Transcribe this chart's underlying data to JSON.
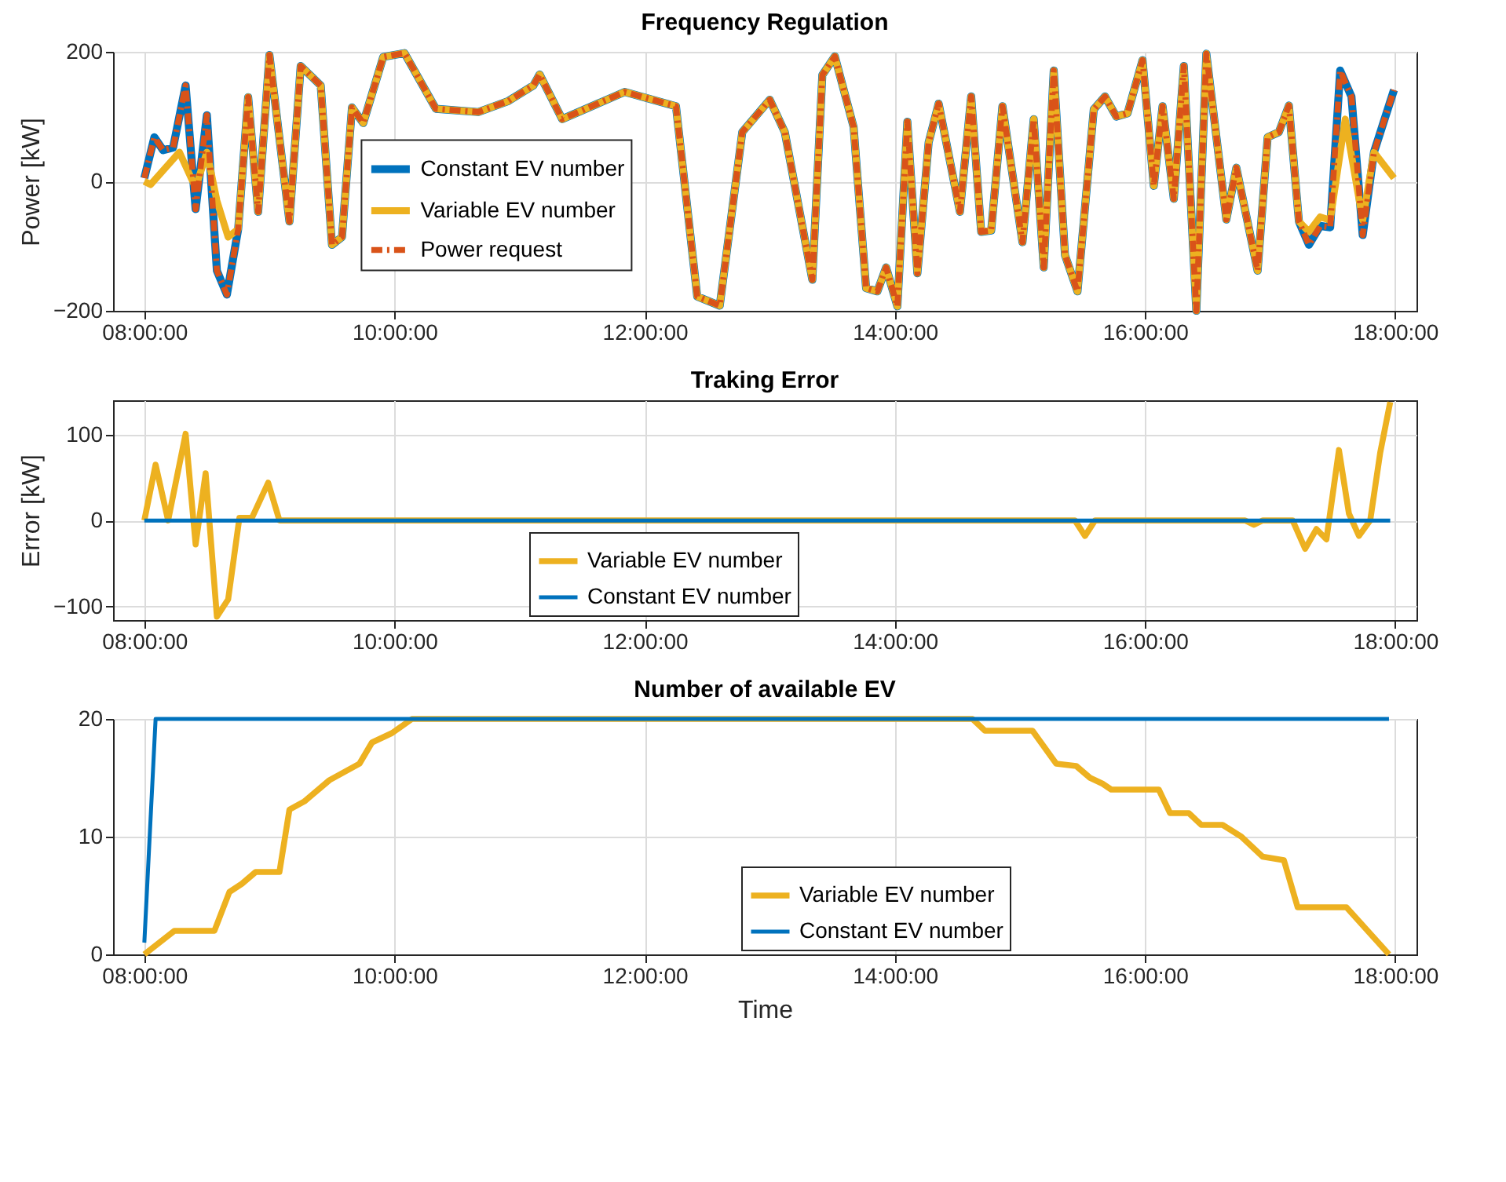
{
  "chart_data": [
    {
      "type": "line",
      "title": "Frequency Regulation",
      "ylabel": "Power [kW]",
      "xlim": [
        7.75,
        18.17
      ],
      "ylim": [
        -200,
        200
      ],
      "yticks": [
        -200,
        0,
        200
      ],
      "xticks": [
        {
          "value": 8,
          "label": "08:00:00"
        },
        {
          "value": 10,
          "label": "10:00:00"
        },
        {
          "value": 12,
          "label": "12:00:00"
        },
        {
          "value": 14,
          "label": "14:00:00"
        },
        {
          "value": 16,
          "label": "16:00:00"
        },
        {
          "value": 18,
          "label": "18:00:00"
        }
      ],
      "grid": true,
      "legend": "left",
      "marker": "none",
      "series": [
        {
          "name": "Constant EV number",
          "color": "#0072bd",
          "line_style": "solid",
          "x": [
            8.0,
            8.08,
            8.15,
            8.23,
            8.33,
            8.41,
            8.5,
            8.58,
            8.66,
            8.75,
            8.83,
            8.91,
            9.0,
            9.16,
            9.25,
            9.41,
            9.5,
            9.58,
            9.66,
            9.75,
            9.91,
            10.08,
            10.33,
            10.67,
            10.91,
            11.11,
            11.16,
            11.34,
            11.84,
            12.25,
            12.42,
            12.6,
            12.78,
            13.0,
            13.12,
            13.34,
            13.42,
            13.52,
            13.67,
            13.77,
            13.86,
            13.93,
            14.02,
            14.1,
            14.18,
            14.27,
            14.35,
            14.52,
            14.61,
            14.69,
            14.77,
            14.86,
            15.02,
            15.11,
            15.19,
            15.27,
            15.36,
            15.46,
            15.59,
            15.68,
            15.77,
            15.86,
            15.98,
            16.07,
            16.14,
            16.23,
            16.31,
            16.41,
            16.49,
            16.65,
            16.73,
            16.9,
            16.98,
            17.07,
            17.15,
            17.23,
            17.31,
            17.4,
            17.48,
            17.56,
            17.65,
            17.74,
            17.83,
            17.99
          ],
          "values": [
            5,
            68,
            48,
            52,
            148,
            -43,
            102,
            -138,
            -175,
            -74,
            130,
            -47,
            195,
            -62,
            178,
            148,
            -98,
            -86,
            114,
            90,
            192,
            198,
            112,
            107,
            124,
            148,
            165,
            96,
            138,
            116,
            -178,
            -192,
            76,
            126,
            76,
            -152,
            164,
            193,
            84,
            -165,
            -170,
            -133,
            -193,
            92,
            -142,
            60,
            120,
            -47,
            131,
            -78,
            -76,
            116,
            -94,
            96,
            -133,
            171,
            -114,
            -170,
            111,
            131,
            100,
            105,
            187,
            -7,
            116,
            -27,
            178,
            -200,
            197,
            -59,
            21,
            -138,
            68,
            76,
            117,
            -62,
            -98,
            -69,
            -71,
            171,
            131,
            -83,
            45,
            141
          ]
        },
        {
          "name": "Variable EV number",
          "color": "#edb120",
          "line_style": "solid",
          "x": [
            8.0,
            8.05,
            8.28,
            8.41,
            8.5,
            8.58,
            8.67,
            8.75,
            8.83,
            8.91,
            9.0,
            9.16,
            9.25,
            9.41,
            9.5,
            9.58,
            9.66,
            9.75,
            9.91,
            10.08,
            10.33,
            10.67,
            10.91,
            11.11,
            11.16,
            11.34,
            11.84,
            12.25,
            12.42,
            12.6,
            12.78,
            13.0,
            13.12,
            13.34,
            13.42,
            13.52,
            13.67,
            13.77,
            13.86,
            13.93,
            14.02,
            14.1,
            14.18,
            14.27,
            14.35,
            14.52,
            14.61,
            14.69,
            14.77,
            14.86,
            15.02,
            15.11,
            15.19,
            15.27,
            15.36,
            15.46,
            15.59,
            15.68,
            15.77,
            15.86,
            15.98,
            16.07,
            16.14,
            16.23,
            16.31,
            16.41,
            16.49,
            16.65,
            16.73,
            16.9,
            16.98,
            17.07,
            17.15,
            17.23,
            17.31,
            17.4,
            17.48,
            17.6,
            17.74,
            17.83,
            17.99
          ],
          "values": [
            0,
            -5,
            45,
            -10,
            45,
            -30,
            -86,
            -74,
            130,
            -47,
            195,
            -62,
            178,
            148,
            -98,
            -86,
            114,
            90,
            192,
            198,
            112,
            107,
            124,
            148,
            165,
            96,
            138,
            116,
            -178,
            -192,
            76,
            126,
            76,
            -152,
            164,
            193,
            84,
            -165,
            -170,
            -133,
            -193,
            92,
            -142,
            60,
            120,
            -47,
            131,
            -78,
            -76,
            116,
            -94,
            96,
            -133,
            171,
            -114,
            -170,
            111,
            131,
            100,
            105,
            187,
            -7,
            116,
            -27,
            178,
            -200,
            197,
            -59,
            21,
            -138,
            68,
            76,
            117,
            -62,
            -78,
            -55,
            -60,
            96,
            -60,
            45,
            5
          ]
        },
        {
          "name": "Power request",
          "color": "#d95319",
          "line_style": "dashdot",
          "x": [
            8.0,
            8.08,
            8.15,
            8.23,
            8.33,
            8.41,
            8.5,
            8.58,
            8.66,
            8.75,
            8.83,
            8.91,
            9.0,
            9.16,
            9.25,
            9.41,
            9.5,
            9.58,
            9.66,
            9.75,
            9.91,
            10.08,
            10.33,
            10.67,
            10.91,
            11.11,
            11.16,
            11.34,
            11.84,
            12.25,
            12.42,
            12.6,
            12.78,
            13.0,
            13.12,
            13.34,
            13.42,
            13.52,
            13.67,
            13.77,
            13.86,
            13.93,
            14.02,
            14.1,
            14.18,
            14.27,
            14.35,
            14.52,
            14.61,
            14.69,
            14.77,
            14.86,
            15.02,
            15.11,
            15.19,
            15.27,
            15.36,
            15.46,
            15.59,
            15.68,
            15.77,
            15.86,
            15.98,
            16.07,
            16.14,
            16.23,
            16.31,
            16.41,
            16.49,
            16.65,
            16.73,
            16.9,
            16.98,
            17.07,
            17.15,
            17.23,
            17.31,
            17.4,
            17.48,
            17.56,
            17.65,
            17.74,
            17.83,
            17.99
          ],
          "values": [
            5,
            68,
            48,
            52,
            148,
            -43,
            102,
            -138,
            -175,
            -74,
            130,
            -47,
            195,
            -62,
            178,
            148,
            -98,
            -86,
            114,
            90,
            192,
            198,
            112,
            107,
            124,
            148,
            165,
            96,
            138,
            116,
            -178,
            -192,
            76,
            126,
            76,
            -152,
            164,
            193,
            84,
            -165,
            -170,
            -133,
            -193,
            92,
            -142,
            60,
            120,
            -47,
            131,
            -78,
            -76,
            116,
            -94,
            96,
            -133,
            171,
            -114,
            -170,
            111,
            131,
            100,
            105,
            187,
            -7,
            116,
            -27,
            178,
            -200,
            197,
            -59,
            21,
            -138,
            68,
            76,
            117,
            -62,
            -98,
            -69,
            -71,
            171,
            131,
            -83,
            45,
            141
          ]
        }
      ]
    },
    {
      "type": "line",
      "title": "Traking Error",
      "ylabel": "Error [kW]",
      "xlim": [
        7.75,
        18.17
      ],
      "ylim": [
        -116,
        140
      ],
      "yticks": [
        -100,
        0,
        100
      ],
      "xticks": [
        {
          "value": 8,
          "label": "08:00:00"
        },
        {
          "value": 10,
          "label": "10:00:00"
        },
        {
          "value": 12,
          "label": "12:00:00"
        },
        {
          "value": 14,
          "label": "14:00:00"
        },
        {
          "value": 16,
          "label": "16:00:00"
        },
        {
          "value": 18,
          "label": "18:00:00"
        }
      ],
      "grid": true,
      "legend": "bottom",
      "marker": "none",
      "series": [
        {
          "name": "Variable EV number",
          "color": "#edb120",
          "line_style": "solid",
          "x": [
            8.0,
            8.09,
            8.19,
            8.33,
            8.41,
            8.49,
            8.58,
            8.67,
            8.76,
            8.86,
            8.99,
            9.08,
            15.44,
            15.52,
            15.6,
            16.8,
            16.87,
            16.94,
            17.18,
            17.28,
            17.37,
            17.45,
            17.55,
            17.63,
            17.71,
            17.8,
            17.88,
            17.96
          ],
          "values": [
            0,
            65,
            0,
            101,
            -28,
            55,
            -112,
            -92,
            3,
            3,
            44,
            0,
            0,
            -18,
            0,
            0,
            -5,
            0,
            0,
            -33,
            -10,
            -22,
            82,
            8,
            -18,
            0,
            79,
            138
          ]
        },
        {
          "name": "Constant EV number",
          "color": "#0072bd",
          "line_style": "solid",
          "x": [
            8.0,
            17.96
          ],
          "values": [
            0,
            0
          ]
        }
      ]
    },
    {
      "type": "line",
      "title": "Number of available EV",
      "xlabel": "Time",
      "xlim": [
        7.75,
        18.17
      ],
      "ylim": [
        0,
        20
      ],
      "yticks": [
        0,
        10,
        20
      ],
      "xticks": [
        {
          "value": 8,
          "label": "08:00:00"
        },
        {
          "value": 10,
          "label": "10:00:00"
        },
        {
          "value": 12,
          "label": "12:00:00"
        },
        {
          "value": 14,
          "label": "14:00:00"
        },
        {
          "value": 16,
          "label": "16:00:00"
        },
        {
          "value": 18,
          "label": "18:00:00"
        }
      ],
      "grid": true,
      "legend": "bottom right",
      "marker": "none",
      "series": [
        {
          "name": "Variable EV number",
          "color": "#edb120",
          "line_style": "solid",
          "x": [
            8.0,
            8.24,
            8.56,
            8.68,
            8.78,
            8.89,
            9.08,
            9.16,
            9.28,
            9.48,
            9.72,
            9.82,
            9.98,
            10.14,
            14.62,
            14.72,
            15.1,
            15.29,
            15.45,
            15.56,
            15.66,
            15.73,
            16.11,
            16.2,
            16.35,
            16.45,
            16.62,
            16.77,
            16.94,
            17.11,
            17.22,
            17.61,
            17.95
          ],
          "values": [
            0,
            2,
            2,
            5.3,
            6,
            7,
            7,
            12.3,
            13,
            14.8,
            16.2,
            18,
            18.8,
            20,
            20,
            19,
            19,
            16.2,
            16,
            15,
            14.5,
            14,
            14,
            12,
            12,
            11,
            11,
            10,
            8.3,
            8,
            4,
            4,
            0
          ]
        },
        {
          "name": "Constant EV number",
          "color": "#0072bd",
          "line_style": "solid",
          "x": [
            8.0,
            8.09,
            17.95
          ],
          "values": [
            1,
            20,
            20
          ]
        }
      ]
    }
  ]
}
